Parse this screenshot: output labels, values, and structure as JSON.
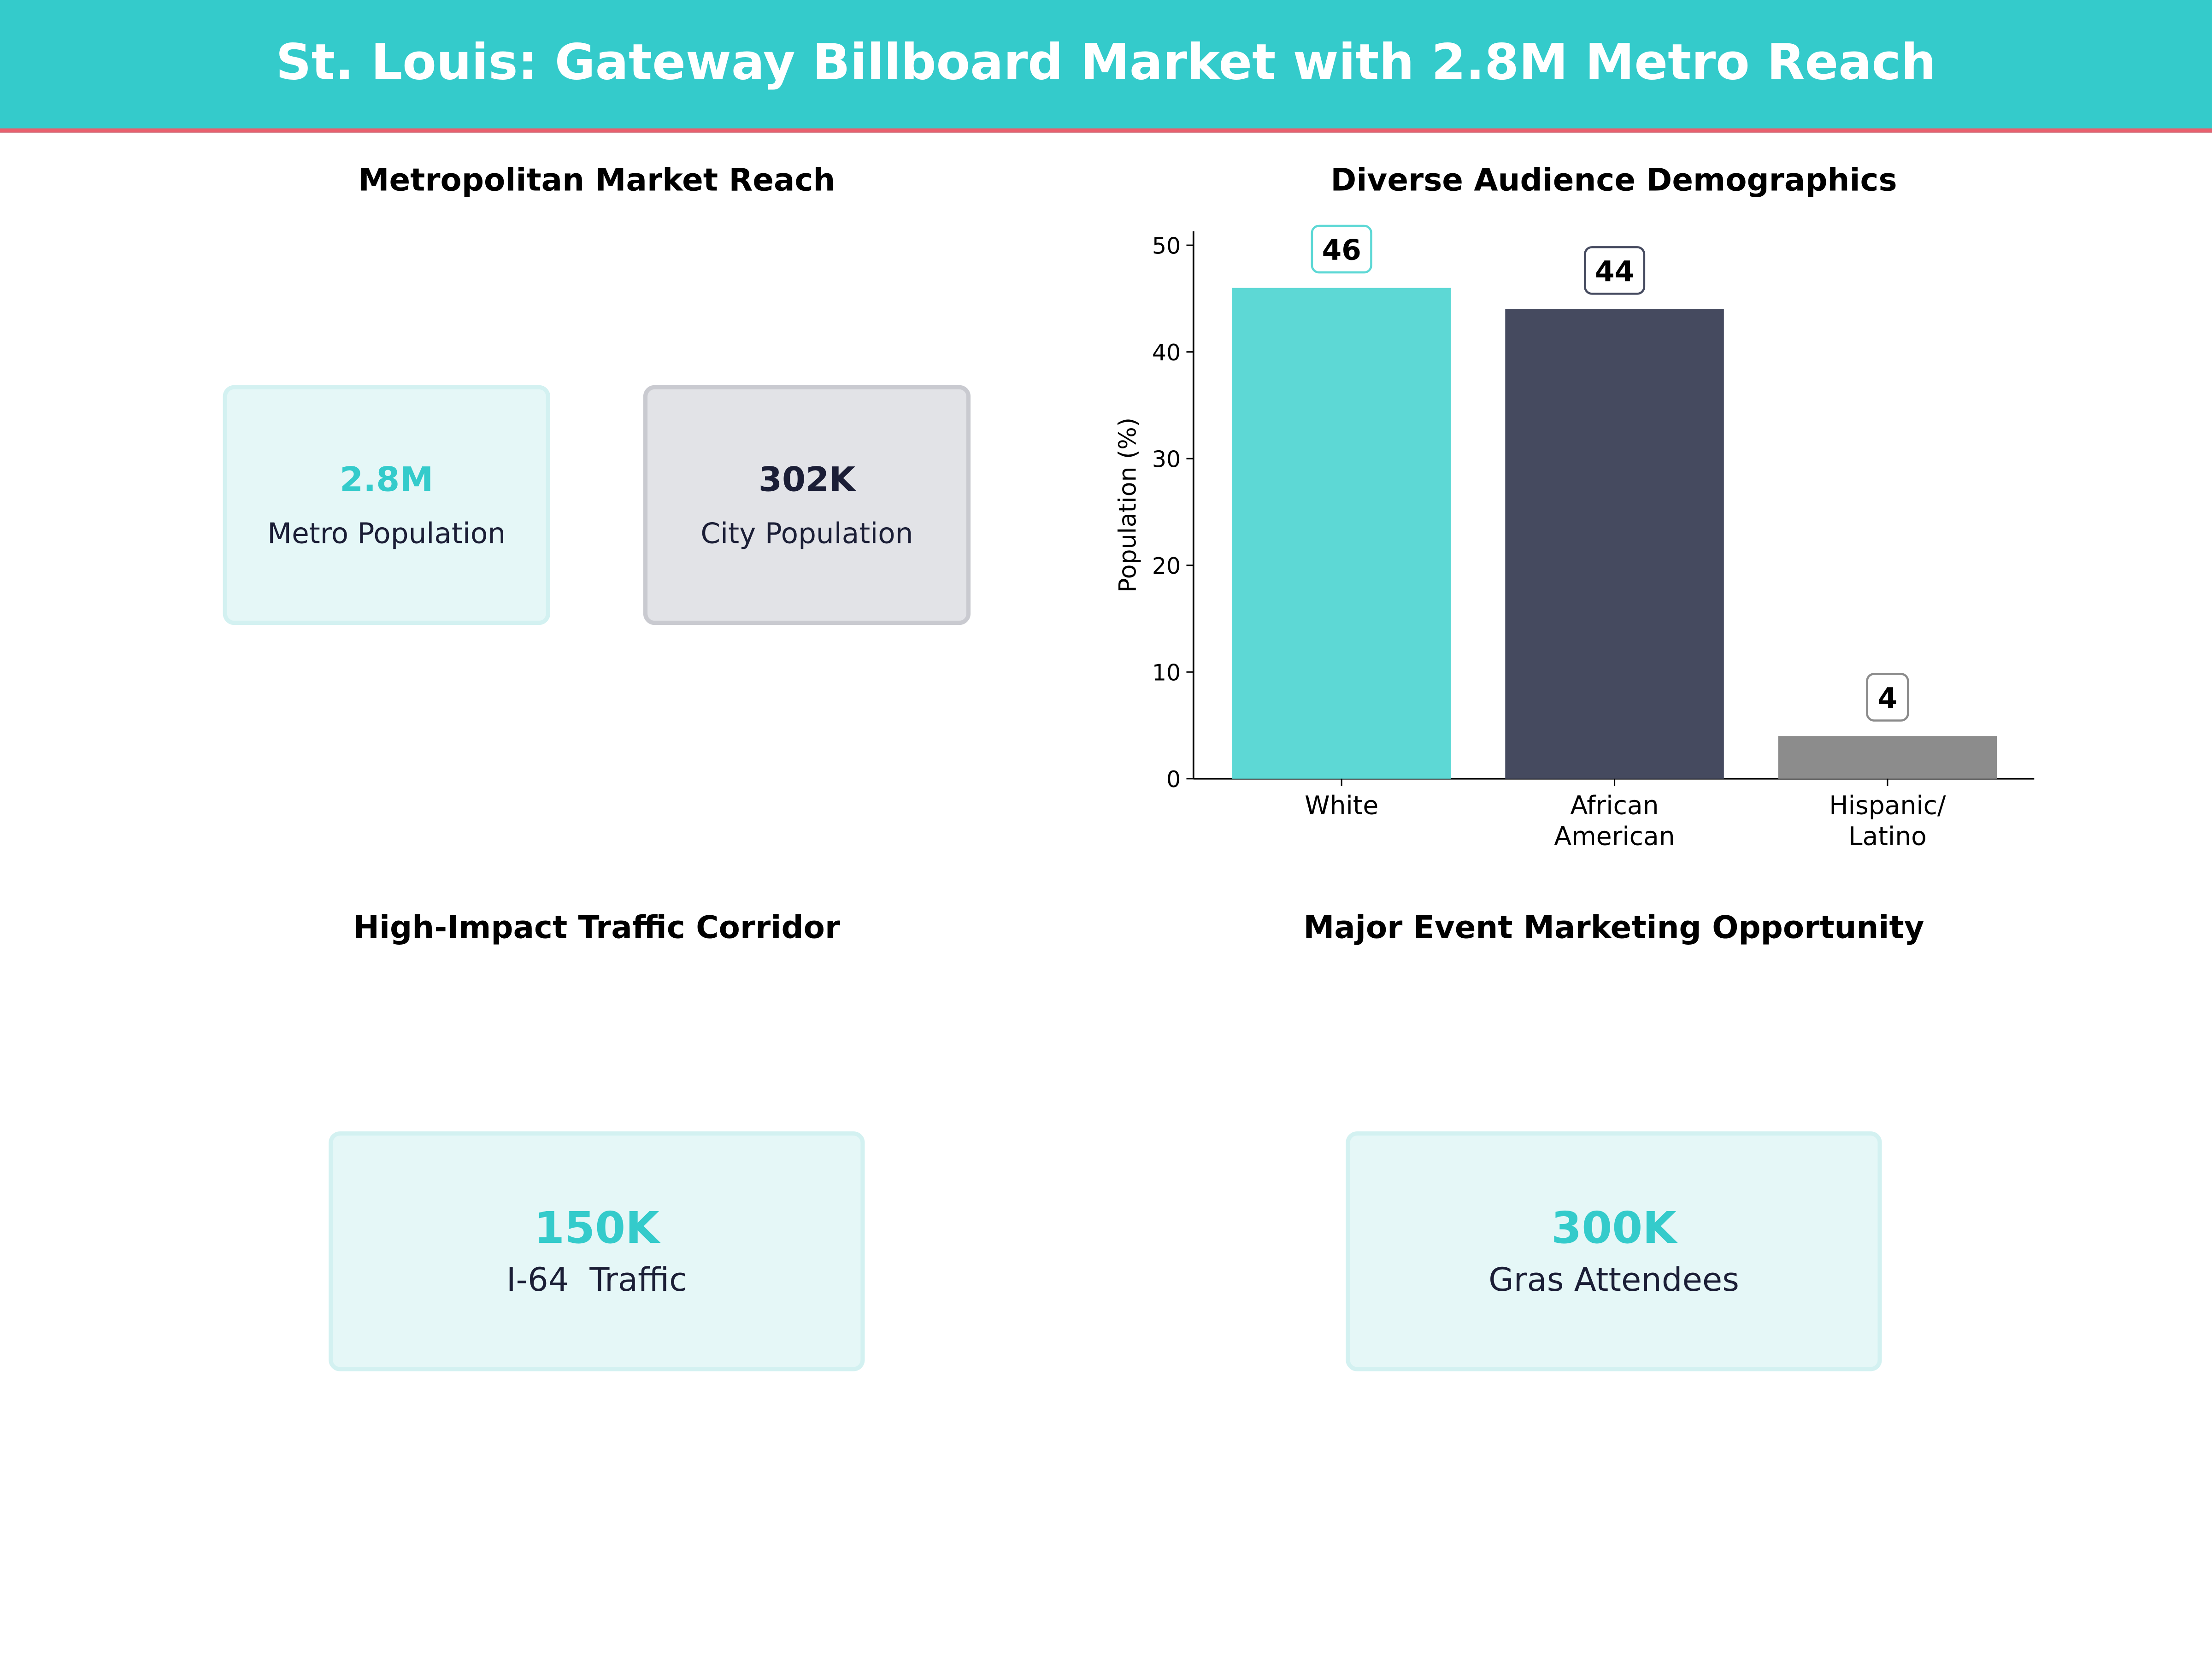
{
  "header": {
    "title": "St. Louis: Gateway Billboard Market with 2.8M Metro Reach"
  },
  "colors": {
    "teal": "#34CBCB",
    "accent_red": "#E8606E",
    "navy": "#1B1E36"
  },
  "panels": {
    "market_reach": {
      "title": "Metropolitan Market Reach",
      "cards": [
        {
          "value": "2.8M",
          "label": "Metro Population"
        },
        {
          "value": "302K",
          "label": "City Population"
        }
      ]
    },
    "traffic": {
      "title": "High-Impact Traffic Corridor",
      "card": {
        "value": "150K",
        "label": "I-64  Traffic"
      }
    },
    "event": {
      "title": "Major Event Marketing Opportunity",
      "card": {
        "value": "300K",
        "label": "Gras Attendees"
      }
    }
  },
  "chart_data": {
    "type": "bar",
    "title": "Diverse Audience Demographics",
    "categories": [
      "White",
      "African\nAmerican",
      "Hispanic/\nLatino"
    ],
    "values": [
      46,
      44,
      4
    ],
    "data_labels": [
      "46",
      "44",
      "4"
    ],
    "colors": [
      "#5DD8D5",
      "#454A5F",
      "#8C8C8C"
    ],
    "xlabel": "",
    "ylabel": "Population (%)",
    "ylim": [
      0,
      51.3
    ],
    "yticks": [
      0,
      10,
      20,
      30,
      40,
      50
    ],
    "grid": false
  }
}
